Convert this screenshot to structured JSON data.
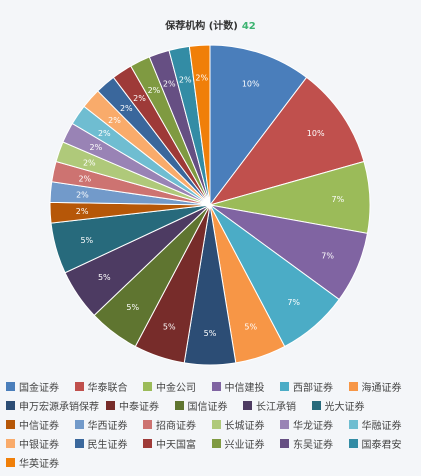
{
  "chart_data": {
    "type": "pie",
    "title": "保荐机构 (计数)",
    "title_count": "42",
    "slices": [
      {
        "name": "国金证券",
        "value": 10,
        "label": "10%",
        "color": "#4a7ebb"
      },
      {
        "name": "华泰联合",
        "value": 10,
        "label": "10%",
        "color": "#c0504d"
      },
      {
        "name": "中金公司",
        "value": 7,
        "label": "7%",
        "color": "#9bbb59"
      },
      {
        "name": "中信建投",
        "value": 7,
        "label": "7%",
        "color": "#8064a2"
      },
      {
        "name": "西部证券",
        "value": 7,
        "label": "7%",
        "color": "#4bacc6"
      },
      {
        "name": "海通证券",
        "value": 5,
        "label": "5%",
        "color": "#f79646"
      },
      {
        "name": "申万宏源承销保荐",
        "value": 5,
        "label": "5%",
        "color": "#2c4d75"
      },
      {
        "name": "中泰证券",
        "value": 5,
        "label": "5%",
        "color": "#772c2a"
      },
      {
        "name": "国信证券",
        "value": 5,
        "label": "5%",
        "color": "#5f7530"
      },
      {
        "name": "长江承销",
        "value": 5,
        "label": "5%",
        "color": "#4d3b62"
      },
      {
        "name": "光大证券",
        "value": 5,
        "label": "5%",
        "color": "#276a7c"
      },
      {
        "name": "中信证券",
        "value": 2,
        "label": "2%",
        "color": "#b65708"
      },
      {
        "name": "华西证券",
        "value": 2,
        "label": "2%",
        "color": "#729aca"
      },
      {
        "name": "招商证券",
        "value": 2,
        "label": "2%",
        "color": "#cd7371"
      },
      {
        "name": "长城证券",
        "value": 2,
        "label": "2%",
        "color": "#afc97a"
      },
      {
        "name": "华龙证券",
        "value": 2,
        "label": "2%",
        "color": "#9983b5"
      },
      {
        "name": "华融证券",
        "value": 2,
        "label": "2%",
        "color": "#6fbdd1"
      },
      {
        "name": "中银证券",
        "value": 2,
        "label": "2%",
        "color": "#f9ab6b"
      },
      {
        "name": "民生证券",
        "value": 2,
        "label": "2%",
        "color": "#3a679c"
      },
      {
        "name": "中天国富",
        "value": 2,
        "label": "2%",
        "color": "#9e3a38"
      },
      {
        "name": "兴业证券",
        "value": 2,
        "label": "2%",
        "color": "#7f9a41"
      },
      {
        "name": "东吴证券",
        "value": 2,
        "label": "2%",
        "color": "#664f83"
      },
      {
        "name": "国泰君安",
        "value": 2,
        "label": "2%",
        "color": "#338ca5"
      },
      {
        "name": "华英证券",
        "value": 2,
        "label": "2%",
        "color": "#f07f09"
      }
    ],
    "legend_placement": "bottom"
  }
}
